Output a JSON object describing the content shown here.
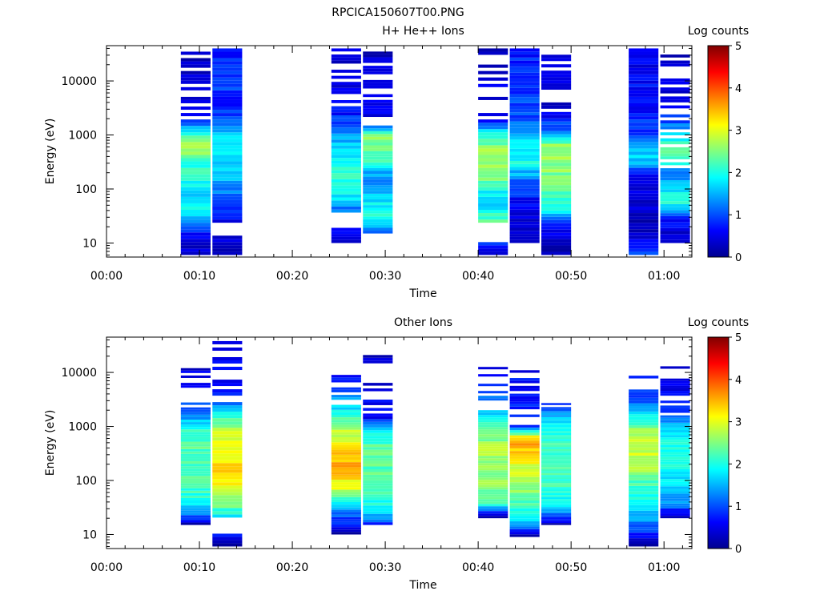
{
  "figure_title": "RPCICA150607T00.PNG",
  "colorbar_label": "Log counts",
  "colors": [
    "#00008f",
    "#0000ff",
    "#0080ff",
    "#00ffff",
    "#80ff80",
    "#ffff00",
    "#ff8000",
    "#ff0000",
    "#800000"
  ],
  "chart_data": [
    {
      "type": "heatmap",
      "title": "H+ He++ Ions",
      "xlabel": "Time",
      "ylabel": "Energy (eV)",
      "x_ticks": [
        "00:00",
        "00:10",
        "00:20",
        "00:30",
        "00:40",
        "00:50",
        "01:00"
      ],
      "x_range_min": [
        0,
        63
      ],
      "y_scale": "log",
      "y_ticks": [
        "10",
        "100",
        "1000",
        "10000"
      ],
      "y_range": [
        5.5,
        45000
      ],
      "colorbar_range": [
        0,
        5
      ],
      "colorbar_ticks": [
        "0",
        "1",
        "2",
        "3",
        "4",
        "5"
      ],
      "columns": [
        {
          "t0": 8.0,
          "t1": 11.2,
          "emin": 6,
          "emax": 40000,
          "profile": [
            [
              6,
              0.2
            ],
            [
              20,
              0.9
            ],
            [
              35,
              2.0
            ],
            [
              70,
              1.6
            ],
            [
              120,
              2.0
            ],
            [
              300,
              2.1
            ],
            [
              600,
              2.8
            ],
            [
              1000,
              2.2
            ],
            [
              2000,
              0.6
            ],
            [
              5000,
              0.4
            ],
            [
              40000,
              0.2
            ]
          ],
          "sparse_above": 1200
        },
        {
          "t0": 11.4,
          "t1": 14.6,
          "emin": 6,
          "emax": 40000,
          "profile": [
            [
              6,
              0.2
            ],
            [
              25,
              0.6
            ],
            [
              60,
              1.0
            ],
            [
              200,
              1.6
            ],
            [
              600,
              2.0
            ],
            [
              1200,
              1.4
            ],
            [
              3000,
              0.8
            ],
            [
              10000,
              0.9
            ],
            [
              40000,
              0.7
            ]
          ],
          "sparse_above": 100000,
          "gap": [
            14,
            25
          ]
        },
        {
          "t0": 24.2,
          "t1": 27.4,
          "emin": 10,
          "emax": 40000,
          "profile": [
            [
              10,
              0.2
            ],
            [
              40,
              1.2
            ],
            [
              80,
              1.9
            ],
            [
              200,
              2.1
            ],
            [
              500,
              1.8
            ],
            [
              1200,
              1.2
            ],
            [
              3000,
              0.6
            ],
            [
              40000,
              0.4
            ]
          ],
          "sparse_above": 3000,
          "gap": [
            20,
            35
          ]
        },
        {
          "t0": 27.6,
          "t1": 30.8,
          "emin": 15,
          "emax": 35000,
          "profile": [
            [
              15,
              0.8
            ],
            [
              20,
              1.8
            ],
            [
              40,
              2.0
            ],
            [
              80,
              1.6
            ],
            [
              150,
              1.2
            ],
            [
              400,
              2.3
            ],
            [
              900,
              2.6
            ],
            [
              2000,
              0.5
            ],
            [
              35000,
              0.3
            ]
          ],
          "sparse_above": 1000
        },
        {
          "t0": 40.0,
          "t1": 43.2,
          "emin": 6,
          "emax": 40000,
          "profile": [
            [
              6,
              0.2
            ],
            [
              25,
              2.3
            ],
            [
              60,
              1.6
            ],
            [
              150,
              2.4
            ],
            [
              500,
              2.8
            ],
            [
              1000,
              2.0
            ],
            [
              2000,
              0.6
            ],
            [
              40000,
              0.3
            ]
          ],
          "sparse_above": 2000,
          "gap": [
            10,
            25
          ]
        },
        {
          "t0": 43.4,
          "t1": 46.6,
          "emin": 10,
          "emax": 40000,
          "profile": [
            [
              10,
              0.2
            ],
            [
              25,
              0.3
            ],
            [
              60,
              0.6
            ],
            [
              150,
              1.2
            ],
            [
              300,
              2.0
            ],
            [
              800,
              1.8
            ],
            [
              2000,
              1.0
            ],
            [
              10000,
              0.9
            ],
            [
              40000,
              0.7
            ]
          ],
          "sparse_above": 100000
        },
        {
          "t0": 46.8,
          "t1": 50.0,
          "emin": 6,
          "emax": 35000,
          "profile": [
            [
              6,
              0.2
            ],
            [
              20,
              0.6
            ],
            [
              40,
              2.0
            ],
            [
              100,
              2.4
            ],
            [
              300,
              2.6
            ],
            [
              600,
              2.7
            ],
            [
              1100,
              1.2
            ],
            [
              3000,
              0.4
            ],
            [
              35000,
              0.3
            ]
          ],
          "sparse_above": 2500
        },
        {
          "t0": 56.2,
          "t1": 59.4,
          "emin": 6,
          "emax": 40000,
          "profile": [
            [
              6,
              1.0
            ],
            [
              15,
              0.3
            ],
            [
              40,
              0.3
            ],
            [
              150,
              0.5
            ],
            [
              400,
              1.8
            ],
            [
              1000,
              1.0
            ],
            [
              3000,
              0.7
            ],
            [
              40000,
              0.5
            ]
          ],
          "sparse_above": 100000
        },
        {
          "t0": 59.6,
          "t1": 62.8,
          "emin": 10,
          "emax": 35000,
          "profile": [
            [
              10,
              0.2
            ],
            [
              30,
              0.8
            ],
            [
              60,
              2.1
            ],
            [
              200,
              1.2
            ],
            [
              500,
              2.6
            ],
            [
              1000,
              1.6
            ],
            [
              3000,
              0.5
            ],
            [
              35000,
              0.3
            ]
          ],
          "sparse_above": 200
        }
      ]
    },
    {
      "type": "heatmap",
      "title": "Other Ions",
      "xlabel": "Time",
      "ylabel": "Energy (eV)",
      "x_ticks": [
        "00:00",
        "00:10",
        "00:20",
        "00:30",
        "00:40",
        "00:50",
        "01:00"
      ],
      "x_range_min": [
        0,
        63
      ],
      "y_scale": "log",
      "y_ticks": [
        "10",
        "100",
        "1000",
        "10000"
      ],
      "y_range": [
        5.5,
        45000
      ],
      "colorbar_range": [
        0,
        5
      ],
      "colorbar_ticks": [
        "0",
        "1",
        "2",
        "3",
        "4",
        "5"
      ],
      "columns": [
        {
          "t0": 8.0,
          "t1": 11.2,
          "emin": 15,
          "emax": 12000,
          "profile": [
            [
              15,
              0.2
            ],
            [
              25,
              1.4
            ],
            [
              40,
              2.0
            ],
            [
              100,
              2.2
            ],
            [
              300,
              2.3
            ],
            [
              800,
              2.2
            ],
            [
              2000,
              1.0
            ],
            [
              12000,
              0.4
            ]
          ],
          "sparse_above": 2200
        },
        {
          "t0": 11.4,
          "t1": 14.6,
          "emin": 6,
          "emax": 38000,
          "profile": [
            [
              6,
              0.2
            ],
            [
              22,
              1.8
            ],
            [
              40,
              2.6
            ],
            [
              100,
              3.3
            ],
            [
              300,
              3.2
            ],
            [
              700,
              3.0
            ],
            [
              1500,
              2.1
            ],
            [
              3000,
              0.8
            ],
            [
              38000,
              0.5
            ]
          ],
          "sparse_above": 3000,
          "gap": [
            10,
            20
          ]
        },
        {
          "t0": 24.2,
          "t1": 27.4,
          "emin": 10,
          "emax": 9000,
          "profile": [
            [
              10,
              0.2
            ],
            [
              30,
              1.4
            ],
            [
              60,
              2.8
            ],
            [
              150,
              3.5
            ],
            [
              400,
              3.3
            ],
            [
              1000,
              2.6
            ],
            [
              2500,
              1.6
            ],
            [
              9000,
              0.5
            ]
          ],
          "sparse_above": 2600
        },
        {
          "t0": 27.6,
          "t1": 30.8,
          "emin": 15,
          "emax": 30000,
          "profile": [
            [
              15,
              0.8
            ],
            [
              30,
              2.0
            ],
            [
              80,
              2.2
            ],
            [
              300,
              2.4
            ],
            [
              800,
              2.0
            ],
            [
              1500,
              0.6
            ],
            [
              30000,
              0.3
            ]
          ],
          "sparse_above": 1000
        },
        {
          "t0": 40.0,
          "t1": 43.2,
          "emin": 20,
          "emax": 14000,
          "profile": [
            [
              20,
              0.2
            ],
            [
              40,
              2.2
            ],
            [
              100,
              2.6
            ],
            [
              400,
              2.7
            ],
            [
              1200,
              2.0
            ],
            [
              2000,
              1.4
            ],
            [
              14000,
              0.5
            ]
          ],
          "sparse_above": 2100
        },
        {
          "t0": 43.4,
          "t1": 46.6,
          "emin": 9,
          "emax": 11000,
          "profile": [
            [
              9,
              0.2
            ],
            [
              20,
              1.8
            ],
            [
              60,
              2.6
            ],
            [
              200,
              3.0
            ],
            [
              400,
              3.5
            ],
            [
              600,
              3.4
            ],
            [
              1000,
              0.8
            ],
            [
              3000,
              0.7
            ],
            [
              11000,
              0.6
            ]
          ],
          "sparse_above": 1100
        },
        {
          "t0": 46.8,
          "t1": 50.0,
          "emin": 15,
          "emax": 3500,
          "profile": [
            [
              15,
              0.2
            ],
            [
              30,
              1.6
            ],
            [
              80,
              2.2
            ],
            [
              300,
              2.2
            ],
            [
              1000,
              2.0
            ],
            [
              2000,
              1.2
            ],
            [
              3500,
              0.5
            ]
          ],
          "sparse_above": 2200
        },
        {
          "t0": 56.2,
          "t1": 59.4,
          "emin": 6,
          "emax": 11000,
          "profile": [
            [
              6,
              0.2
            ],
            [
              30,
              1.8
            ],
            [
              80,
              2.2
            ],
            [
              200,
              2.8
            ],
            [
              600,
              3.0
            ],
            [
              1500,
              2.0
            ],
            [
              2800,
              1.0
            ],
            [
              11000,
              0.5
            ]
          ],
          "sparse_above": 2900
        },
        {
          "t0": 59.6,
          "t1": 62.8,
          "emin": 20,
          "emax": 16000,
          "profile": [
            [
              20,
              0.3
            ],
            [
              40,
              1.4
            ],
            [
              100,
              1.8
            ],
            [
              400,
              2.0
            ],
            [
              1000,
              1.6
            ],
            [
              2800,
              0.6
            ],
            [
              16000,
              0.4
            ]
          ],
          "sparse_above": 1200
        }
      ]
    }
  ]
}
